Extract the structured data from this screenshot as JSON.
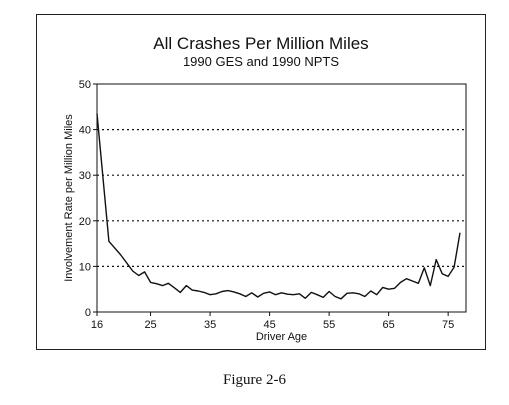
{
  "chart_data": {
    "type": "line",
    "title": "All Crashes Per Million Miles",
    "subtitle": "1990 GES and 1990 NPTS",
    "xlabel": "Driver Age",
    "ylabel": "Involvement Rate per Million Miles",
    "xlim": [
      16,
      78
    ],
    "ylim": [
      0,
      50
    ],
    "x_ticks": [
      16,
      25,
      35,
      45,
      55,
      65,
      75
    ],
    "y_ticks": [
      0,
      10,
      20,
      30,
      40,
      50
    ],
    "gridlines": "horizontal dotted at 10, 20, 30, 40",
    "series": [
      {
        "x": [
          16,
          18,
          20,
          22,
          23,
          24,
          25,
          26,
          27,
          28,
          29,
          30,
          31,
          32,
          33,
          34,
          35,
          36,
          37,
          38,
          39,
          40,
          41,
          42,
          43,
          44,
          45,
          46,
          47,
          48,
          49,
          50,
          51,
          52,
          53,
          54,
          55,
          56,
          57,
          58,
          59,
          60,
          61,
          62,
          63,
          64,
          65,
          66,
          67,
          68,
          69,
          70,
          71,
          72,
          73,
          74,
          75,
          76,
          77
        ],
        "values": [
          43.5,
          15.5,
          12.5,
          9.0,
          8.0,
          8.8,
          6.5,
          6.2,
          5.8,
          6.3,
          5.3,
          4.3,
          5.8,
          4.8,
          4.6,
          4.3,
          3.8,
          4.0,
          4.5,
          4.7,
          4.4,
          4.0,
          3.4,
          4.2,
          3.3,
          4.1,
          4.4,
          3.8,
          4.2,
          3.9,
          3.8,
          4.0,
          3.0,
          4.3,
          3.8,
          3.2,
          4.5,
          3.4,
          2.9,
          4.1,
          4.2,
          4.0,
          3.4,
          4.6,
          3.8,
          5.4,
          5.0,
          5.2,
          6.5,
          7.3,
          6.8,
          6.3,
          9.7,
          5.8,
          11.5,
          8.4,
          7.8,
          9.8,
          17.4
        ]
      }
    ]
  },
  "caption": "Figure 2-6"
}
